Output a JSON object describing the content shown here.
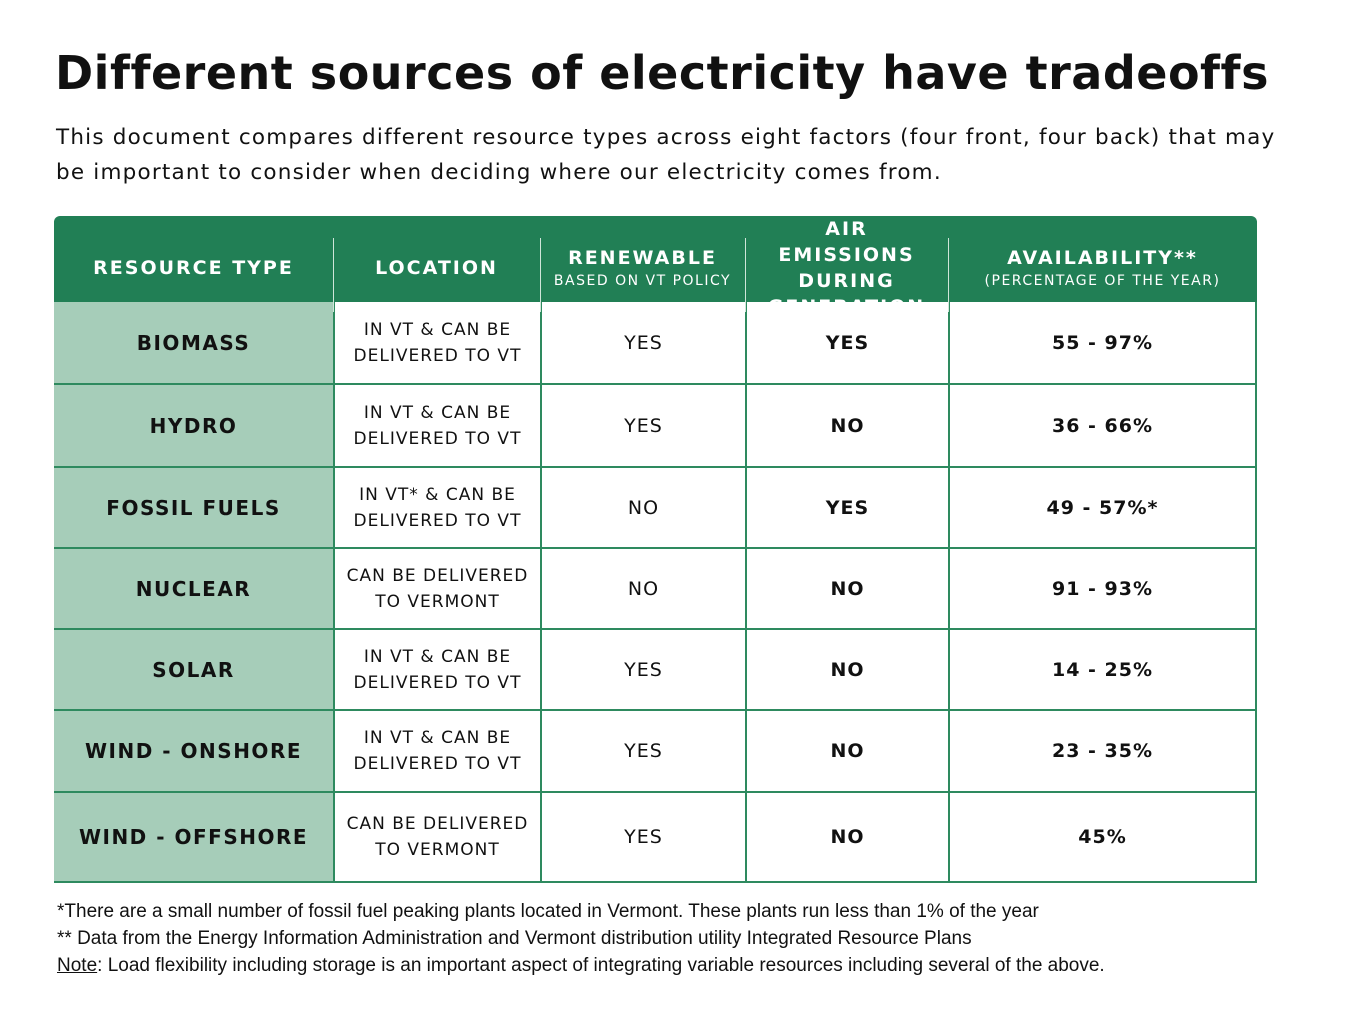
{
  "title": "Different sources of electricity have tradeoffs",
  "intro": "This document compares different resource types across eight factors (four front, four back) that may be important to consider when deciding where our electricity comes from.",
  "headers": {
    "resource": "RESOURCE TYPE",
    "location": "LOCATION",
    "renewable": "RENEWABLE",
    "renewable_sub": "BASED ON VT POLICY",
    "air": "AIR EMISSIONS DURING GENERATION",
    "availability": "AVAILABILITY**",
    "availability_sub": "(PERCENTAGE OF THE YEAR)"
  },
  "rows": [
    {
      "type": "BIOMASS",
      "location": "IN VT & CAN BE DELIVERED TO VT",
      "renewable": "YES",
      "air": "YES",
      "availability": "55 - 97%"
    },
    {
      "type": "HYDRO",
      "location": "IN VT & CAN BE DELIVERED TO VT",
      "renewable": "YES",
      "air": "NO",
      "availability": "36 - 66%"
    },
    {
      "type": "FOSSIL FUELS",
      "location": "IN VT* & CAN BE DELIVERED TO VT",
      "renewable": "NO",
      "air": "YES",
      "availability": "49 - 57%*"
    },
    {
      "type": "NUCLEAR",
      "location": "CAN BE DELIVERED TO VERMONT",
      "renewable": "NO",
      "air": "NO",
      "availability": "91 - 93%"
    },
    {
      "type": "SOLAR",
      "location": "IN VT & CAN BE DELIVERED TO VT",
      "renewable": "YES",
      "air": "NO",
      "availability": "14 - 25%"
    },
    {
      "type": "WIND - ONSHORE",
      "location": "IN VT & CAN BE DELIVERED TO VT",
      "renewable": "YES",
      "air": "NO",
      "availability": "23 - 35%"
    },
    {
      "type": "WIND - OFFSHORE",
      "location": "CAN BE DELIVERED TO VERMONT",
      "renewable": "YES",
      "air": "NO",
      "availability": "45%"
    }
  ],
  "footnotes": {
    "f1": "*There are a small number of fossil fuel peaking plants located in Vermont. These plants run less than 1% of the year",
    "f2": "** Data from the Energy Information Administration and Vermont distribution utility Integrated Resource Plans",
    "note_label": "Note",
    "note": ": Load flexibility including storage is an important aspect of integrating variable resources including several of the above."
  },
  "colors": {
    "header": "#217f55",
    "first_col": "#a6cdb9"
  }
}
